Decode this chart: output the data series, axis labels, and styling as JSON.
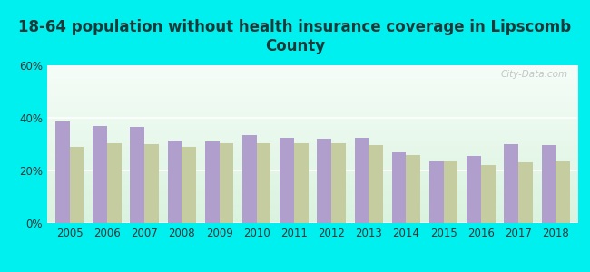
{
  "title": "18-64 population without health insurance coverage in Lipscomb\nCounty",
  "years": [
    2005,
    2006,
    2007,
    2008,
    2009,
    2010,
    2011,
    2012,
    2013,
    2014,
    2015,
    2016,
    2017,
    2018
  ],
  "lipscomb": [
    38.5,
    37.0,
    36.5,
    31.5,
    31.0,
    33.5,
    32.5,
    32.0,
    32.5,
    27.0,
    23.5,
    25.5,
    30.0,
    29.5
  ],
  "texas": [
    29.0,
    30.5,
    30.0,
    29.0,
    30.5,
    30.5,
    30.5,
    30.5,
    29.5,
    26.0,
    23.5,
    22.0,
    23.0,
    23.5
  ],
  "lipscomb_color": "#b09fcc",
  "texas_color": "#c5cc9f",
  "bg_outer": "#00f0f0",
  "ylim": [
    0,
    60
  ],
  "yticks": [
    0,
    20,
    40,
    60
  ],
  "ytick_labels": [
    "0%",
    "20%",
    "40%",
    "60%"
  ],
  "bar_width": 0.38,
  "title_fontsize": 12,
  "tick_fontsize": 8.5,
  "legend_fontsize": 9.5,
  "title_color": "#1a3a3a"
}
